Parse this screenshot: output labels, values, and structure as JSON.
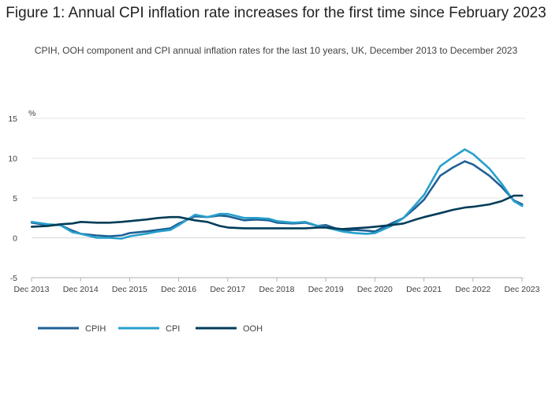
{
  "title": "Figure 1: Annual CPI inflation rate increases for the first time since February 2023",
  "subtitle": "CPIH, OOH component and CPI annual inflation rates for the last 10 years, UK, December 2013 to December 2023",
  "chart_data": {
    "type": "line",
    "ylabel": "%",
    "ylim": [
      -5,
      15
    ],
    "yticks": [
      15,
      10,
      5,
      0,
      -5
    ],
    "xlim": [
      2013.917,
      2023.917
    ],
    "xticks": [
      {
        "x": 2013.917,
        "label": "Dec 2013"
      },
      {
        "x": 2014.917,
        "label": "Dec 2014"
      },
      {
        "x": 2015.917,
        "label": "Dec 2015"
      },
      {
        "x": 2016.917,
        "label": "Dec 2016"
      },
      {
        "x": 2017.917,
        "label": "Dec 2017"
      },
      {
        "x": 2018.917,
        "label": "Dec 2018"
      },
      {
        "x": 2019.917,
        "label": "Dec 2019"
      },
      {
        "x": 2020.917,
        "label": "Dec 2020"
      },
      {
        "x": 2021.917,
        "label": "Dec 2021"
      },
      {
        "x": 2022.917,
        "label": "Dec 2022"
      },
      {
        "x": 2023.917,
        "label": "Dec 2023"
      }
    ],
    "grid": true,
    "legend_position": "bottom-left",
    "series": [
      {
        "name": "CPIH",
        "color": "#206095",
        "points": [
          [
            2013.92,
            1.9
          ],
          [
            2014.25,
            1.6
          ],
          [
            2014.5,
            1.6
          ],
          [
            2014.75,
            0.9
          ],
          [
            2014.92,
            0.5
          ],
          [
            2015.25,
            0.3
          ],
          [
            2015.5,
            0.2
          ],
          [
            2015.75,
            0.3
          ],
          [
            2015.92,
            0.6
          ],
          [
            2016.25,
            0.8
          ],
          [
            2016.5,
            1.0
          ],
          [
            2016.75,
            1.2
          ],
          [
            2016.92,
            1.8
          ],
          [
            2017.25,
            2.7
          ],
          [
            2017.5,
            2.6
          ],
          [
            2017.75,
            2.8
          ],
          [
            2017.92,
            2.7
          ],
          [
            2018.25,
            2.2
          ],
          [
            2018.5,
            2.3
          ],
          [
            2018.75,
            2.2
          ],
          [
            2018.92,
            1.9
          ],
          [
            2019.25,
            1.8
          ],
          [
            2019.5,
            1.9
          ],
          [
            2019.75,
            1.5
          ],
          [
            2019.92,
            1.6
          ],
          [
            2020.25,
            0.9
          ],
          [
            2020.5,
            1.0
          ],
          [
            2020.75,
            0.9
          ],
          [
            2020.92,
            0.8
          ],
          [
            2021.25,
            1.8
          ],
          [
            2021.5,
            2.5
          ],
          [
            2021.75,
            3.8
          ],
          [
            2021.92,
            4.8
          ],
          [
            2022.25,
            7.8
          ],
          [
            2022.5,
            8.8
          ],
          [
            2022.75,
            9.6
          ],
          [
            2022.92,
            9.2
          ],
          [
            2023.25,
            7.8
          ],
          [
            2023.5,
            6.4
          ],
          [
            2023.75,
            4.7
          ],
          [
            2023.92,
            4.2
          ]
        ]
      },
      {
        "name": "CPI",
        "color": "#27a0cc",
        "points": [
          [
            2013.92,
            2.0
          ],
          [
            2014.25,
            1.7
          ],
          [
            2014.5,
            1.6
          ],
          [
            2014.75,
            0.7
          ],
          [
            2014.92,
            0.5
          ],
          [
            2015.25,
            0.0
          ],
          [
            2015.5,
            0.0
          ],
          [
            2015.75,
            -0.1
          ],
          [
            2015.92,
            0.2
          ],
          [
            2016.25,
            0.5
          ],
          [
            2016.5,
            0.8
          ],
          [
            2016.75,
            1.0
          ],
          [
            2016.92,
            1.6
          ],
          [
            2017.25,
            2.9
          ],
          [
            2017.5,
            2.6
          ],
          [
            2017.75,
            3.0
          ],
          [
            2017.92,
            3.0
          ],
          [
            2018.25,
            2.5
          ],
          [
            2018.5,
            2.5
          ],
          [
            2018.75,
            2.4
          ],
          [
            2018.92,
            2.1
          ],
          [
            2019.25,
            1.9
          ],
          [
            2019.5,
            2.0
          ],
          [
            2019.75,
            1.5
          ],
          [
            2019.92,
            1.3
          ],
          [
            2020.25,
            0.8
          ],
          [
            2020.5,
            0.6
          ],
          [
            2020.75,
            0.5
          ],
          [
            2020.92,
            0.6
          ],
          [
            2021.25,
            1.5
          ],
          [
            2021.5,
            2.5
          ],
          [
            2021.75,
            4.2
          ],
          [
            2021.92,
            5.4
          ],
          [
            2022.25,
            9.0
          ],
          [
            2022.5,
            10.1
          ],
          [
            2022.75,
            11.1
          ],
          [
            2022.92,
            10.5
          ],
          [
            2023.25,
            8.7
          ],
          [
            2023.5,
            6.8
          ],
          [
            2023.75,
            4.6
          ],
          [
            2023.92,
            4.0
          ]
        ]
      },
      {
        "name": "OOH",
        "color": "#003c57",
        "points": [
          [
            2013.92,
            1.4
          ],
          [
            2014.25,
            1.5
          ],
          [
            2014.5,
            1.7
          ],
          [
            2014.75,
            1.8
          ],
          [
            2014.92,
            2.0
          ],
          [
            2015.25,
            1.9
          ],
          [
            2015.5,
            1.9
          ],
          [
            2015.75,
            2.0
          ],
          [
            2015.92,
            2.1
          ],
          [
            2016.25,
            2.3
          ],
          [
            2016.5,
            2.5
          ],
          [
            2016.75,
            2.6
          ],
          [
            2016.92,
            2.6
          ],
          [
            2017.25,
            2.2
          ],
          [
            2017.5,
            2.0
          ],
          [
            2017.75,
            1.5
          ],
          [
            2017.92,
            1.3
          ],
          [
            2018.25,
            1.2
          ],
          [
            2018.5,
            1.2
          ],
          [
            2018.75,
            1.2
          ],
          [
            2018.92,
            1.2
          ],
          [
            2019.25,
            1.2
          ],
          [
            2019.5,
            1.2
          ],
          [
            2019.75,
            1.3
          ],
          [
            2019.92,
            1.3
          ],
          [
            2020.25,
            1.1
          ],
          [
            2020.5,
            1.2
          ],
          [
            2020.75,
            1.3
          ],
          [
            2020.92,
            1.4
          ],
          [
            2021.25,
            1.6
          ],
          [
            2021.5,
            1.8
          ],
          [
            2021.75,
            2.3
          ],
          [
            2021.92,
            2.6
          ],
          [
            2022.25,
            3.1
          ],
          [
            2022.5,
            3.5
          ],
          [
            2022.75,
            3.8
          ],
          [
            2022.92,
            3.9
          ],
          [
            2023.25,
            4.2
          ],
          [
            2023.5,
            4.6
          ],
          [
            2023.75,
            5.3
          ],
          [
            2023.92,
            5.3
          ]
        ]
      }
    ]
  }
}
